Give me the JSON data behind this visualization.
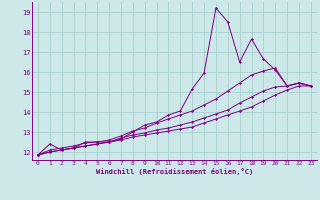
{
  "xlabel": "Windchill (Refroidissement éolien,°C)",
  "bg_color": "#cce8e8",
  "line_color": "#800080",
  "grid_color": "#aacece",
  "x_ticks": [
    0,
    1,
    2,
    3,
    4,
    5,
    6,
    7,
    8,
    9,
    10,
    11,
    12,
    13,
    14,
    15,
    16,
    17,
    18,
    19,
    20,
    21,
    22,
    23
  ],
  "y_ticks": [
    12,
    13,
    14,
    15,
    16,
    17,
    18,
    19
  ],
  "ylim": [
    11.6,
    19.5
  ],
  "xlim": [
    -0.5,
    23.5
  ],
  "series": [
    [
      11.85,
      12.4,
      12.1,
      12.2,
      12.5,
      12.5,
      12.5,
      12.65,
      13.0,
      13.35,
      13.5,
      13.85,
      14.05,
      15.15,
      15.95,
      19.2,
      18.5,
      16.5,
      17.65,
      16.65,
      16.1,
      15.3,
      15.45,
      15.3
    ],
    [
      11.85,
      12.1,
      12.2,
      12.3,
      12.45,
      12.5,
      12.6,
      12.8,
      13.05,
      13.2,
      13.45,
      13.65,
      13.85,
      14.05,
      14.35,
      14.65,
      15.05,
      15.45,
      15.85,
      16.05,
      16.2,
      15.3,
      15.45,
      15.3
    ],
    [
      11.85,
      12.0,
      12.1,
      12.2,
      12.3,
      12.4,
      12.5,
      12.6,
      12.75,
      12.85,
      12.95,
      13.05,
      13.15,
      13.25,
      13.45,
      13.65,
      13.85,
      14.05,
      14.25,
      14.55,
      14.85,
      15.1,
      15.3,
      15.3
    ],
    [
      11.85,
      12.0,
      12.1,
      12.2,
      12.3,
      12.4,
      12.5,
      12.7,
      12.85,
      12.95,
      13.1,
      13.2,
      13.35,
      13.5,
      13.7,
      13.9,
      14.1,
      14.45,
      14.75,
      15.05,
      15.25,
      15.3,
      15.45,
      15.3
    ]
  ]
}
